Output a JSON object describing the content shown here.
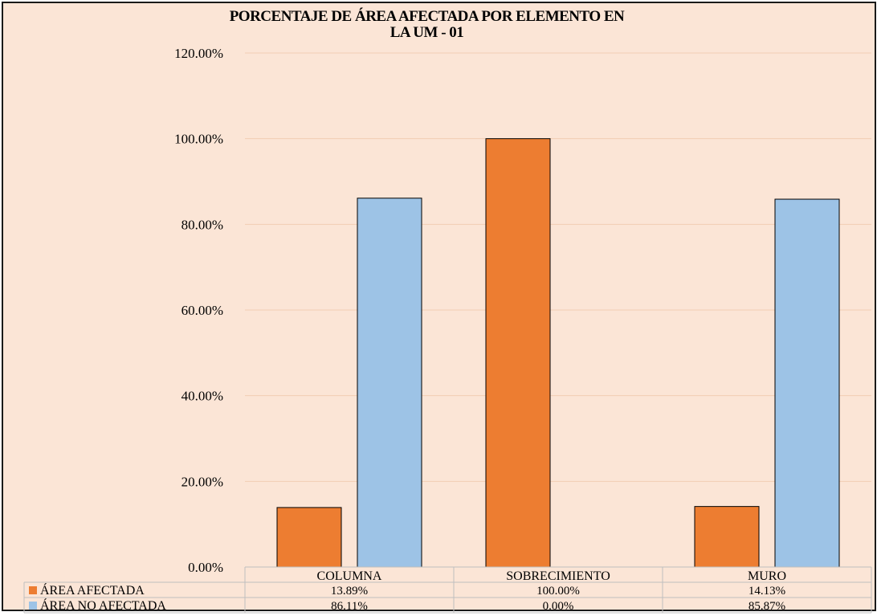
{
  "chart_data": {
    "type": "bar",
    "title_lines": [
      "PORCENTAJE DE ÁREA AFECTADA POR ELEMENTO EN",
      "LA UM - 01"
    ],
    "categories": [
      "COLUMNA",
      "SOBRECIMIENTO",
      "MURO"
    ],
    "series": [
      {
        "name": "ÁREA AFECTADA",
        "values": [
          13.89,
          100.0,
          14.13
        ],
        "labels": [
          "13.89%",
          "100.00%",
          "14.13%"
        ],
        "color": "#ed7d31"
      },
      {
        "name": "ÁREA NO AFECTADA",
        "values": [
          86.11,
          0.0,
          85.87
        ],
        "labels": [
          "86.11%",
          "0.00%",
          "85.87%"
        ],
        "color": "#9dc3e6"
      }
    ],
    "yticks": [
      "0.00%",
      "20.00%",
      "40.00%",
      "60.00%",
      "80.00%",
      "100.00%",
      "120.00%"
    ],
    "ylim": [
      0,
      120
    ],
    "grid": true,
    "legend": "data-table-bottom"
  },
  "style": {
    "background": "#fbe5d6",
    "gridline": "#f2cdb4",
    "bar_outline": "#000000",
    "table_line": "#bfbfbf"
  }
}
